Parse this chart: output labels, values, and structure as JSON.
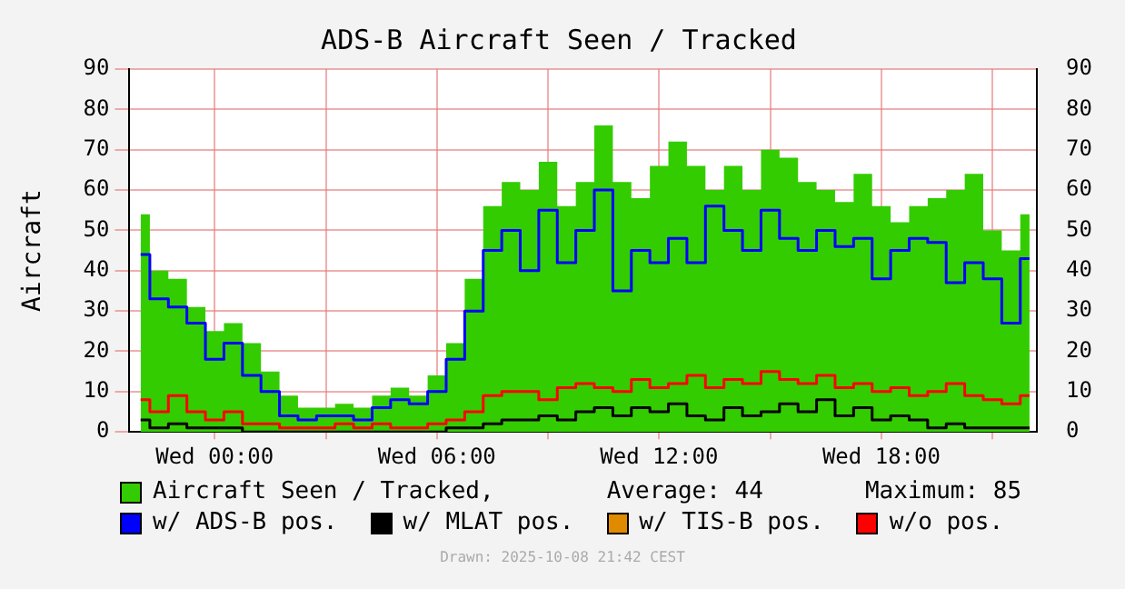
{
  "chart_data": {
    "type": "step",
    "title": "ADS-B Aircraft Seen / Tracked",
    "ylabel": "Aircraft",
    "categories": [
      null,
      null,
      null,
      null,
      "Wed 00:00",
      null,
      null,
      null,
      null,
      null,
      null,
      null,
      null,
      null,
      null,
      null,
      "Wed 06:00",
      null,
      null,
      null,
      null,
      null,
      null,
      null,
      null,
      null,
      null,
      null,
      "Wed 12:00",
      null,
      null,
      null,
      null,
      null,
      null,
      null,
      null,
      null,
      null,
      null,
      "Wed 18:00",
      null,
      null,
      null,
      null,
      null,
      null,
      null,
      null
    ],
    "ylim": [
      0,
      90
    ],
    "yticks": [
      0,
      10,
      20,
      30,
      40,
      50,
      60,
      70,
      80,
      90
    ],
    "y2lim": [
      0,
      90
    ],
    "y2ticks": [
      0,
      10,
      20,
      30,
      40,
      50,
      60,
      70,
      80,
      90
    ],
    "grid": true,
    "legend": "bottom",
    "series": [
      {
        "name": "Aircraft Seen / Tracked,",
        "type": "area",
        "color": "#33cc00",
        "values": [
          54,
          40,
          38,
          31,
          25,
          27,
          22,
          15,
          9,
          6,
          6,
          7,
          6,
          9,
          11,
          9,
          14,
          22,
          38,
          56,
          62,
          60,
          67,
          56,
          62,
          76,
          62,
          58,
          66,
          72,
          66,
          60,
          66,
          60,
          70,
          68,
          62,
          60,
          57,
          64,
          56,
          52,
          56,
          58,
          60,
          64,
          50,
          45,
          54
        ]
      },
      {
        "name": "w/ ADS-B pos.",
        "color": "#0000ff",
        "values": [
          44,
          33,
          31,
          27,
          18,
          22,
          14,
          10,
          4,
          3,
          4,
          4,
          3,
          6,
          8,
          7,
          10,
          18,
          30,
          45,
          50,
          40,
          55,
          42,
          50,
          60,
          35,
          45,
          42,
          48,
          42,
          56,
          50,
          45,
          55,
          48,
          45,
          50,
          46,
          48,
          38,
          45,
          48,
          47,
          37,
          42,
          38,
          27,
          43
        ]
      },
      {
        "name": "w/ MLAT pos.",
        "color": "#000000",
        "values": [
          3,
          1,
          2,
          1,
          1,
          1,
          0,
          0,
          0,
          0,
          0,
          0,
          0,
          0,
          0,
          0,
          0,
          1,
          1,
          2,
          3,
          3,
          4,
          3,
          5,
          6,
          4,
          6,
          5,
          7,
          4,
          3,
          6,
          4,
          5,
          7,
          5,
          8,
          4,
          6,
          3,
          4,
          3,
          1,
          2,
          1,
          1,
          1,
          1
        ]
      },
      {
        "name": "w/ TIS-B pos.",
        "color": "#e08a00",
        "values": [
          null,
          null,
          null,
          null,
          null,
          null,
          null,
          null,
          null,
          null,
          null,
          null,
          null,
          null,
          null,
          null,
          null,
          null,
          null,
          null,
          null,
          null,
          null,
          null,
          null,
          null,
          null,
          null,
          null,
          null,
          null,
          null,
          null,
          null,
          null,
          null,
          null,
          null,
          null,
          null,
          null,
          null,
          null,
          null,
          null,
          null,
          null,
          null,
          null
        ]
      },
      {
        "name": "w/o pos.",
        "color": "#ff0000",
        "values": [
          8,
          5,
          9,
          5,
          3,
          5,
          2,
          2,
          1,
          1,
          1,
          2,
          1,
          2,
          1,
          1,
          2,
          3,
          5,
          9,
          10,
          10,
          8,
          11,
          12,
          11,
          10,
          13,
          11,
          12,
          14,
          11,
          13,
          12,
          15,
          13,
          12,
          14,
          11,
          12,
          10,
          11,
          9,
          10,
          12,
          9,
          8,
          7,
          9
        ]
      }
    ],
    "annotations": [
      "Average: 44",
      "Maximum: 85",
      "Drawn: 2025-10-08 21:42 CEST"
    ]
  }
}
